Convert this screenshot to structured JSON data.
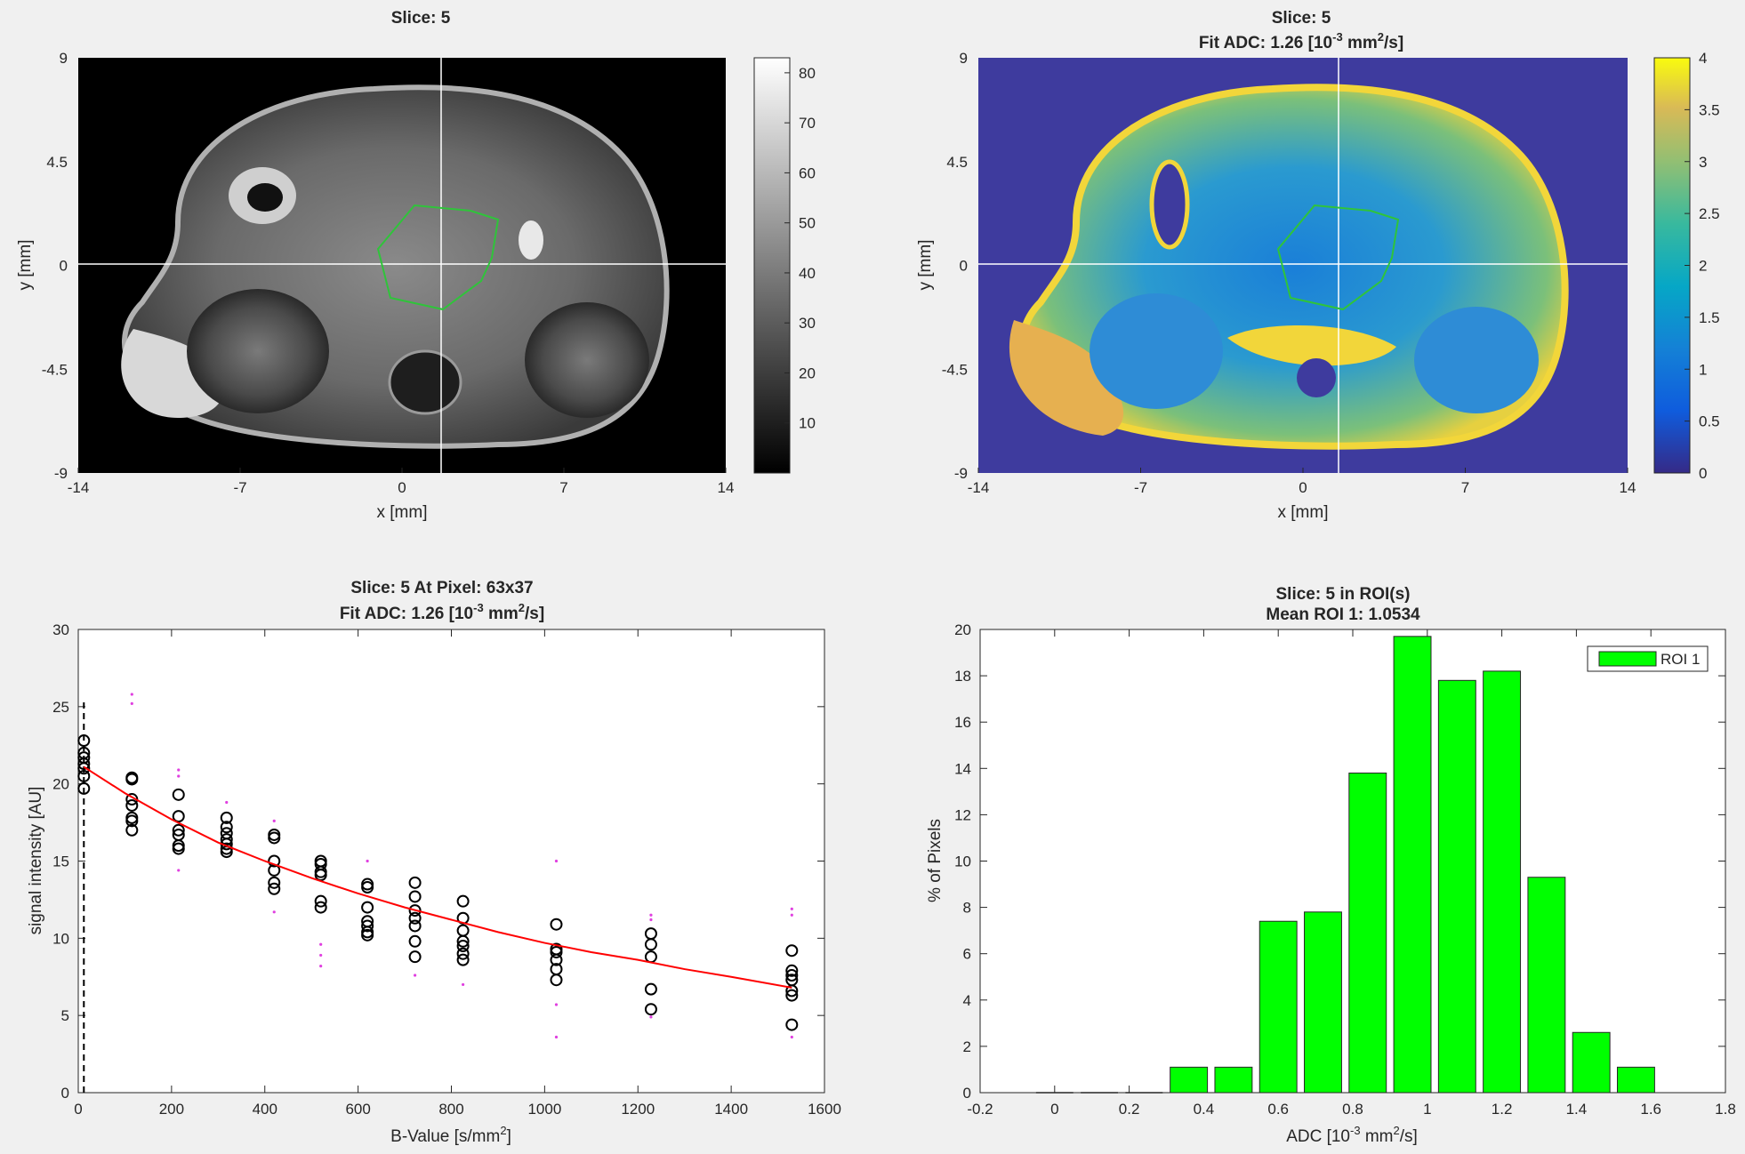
{
  "panels": {
    "mri": {
      "title": "Slice: 5",
      "xlabel": "x [mm]",
      "ylabel": "y [mm]",
      "xticks": [
        "-14",
        "-7",
        "0",
        "7",
        "14"
      ],
      "yticks": [
        "9",
        "4.5",
        "0",
        "-4.5",
        "-9"
      ],
      "colorbar_ticks": [
        "80",
        "70",
        "60",
        "50",
        "40",
        "30",
        "20",
        "10"
      ],
      "colormap": "gray",
      "roi_color": "#2fc43a",
      "crosshair_color": "#ffffff"
    },
    "adc_map": {
      "title_line1": "Slice: 5",
      "title_line2_prefix": "Fit ADC: 1.26 [10",
      "title_line2_sup": "-3",
      "title_line2_mid": " mm",
      "title_line2_sup2": "2",
      "title_line2_suffix": "/s]",
      "xlabel": "x [mm]",
      "ylabel": "y [mm]",
      "xticks": [
        "-14",
        "-7",
        "0",
        "7",
        "14"
      ],
      "yticks": [
        "9",
        "4.5",
        "0",
        "-4.5",
        "-9"
      ],
      "colorbar_ticks": [
        "4",
        "3.5",
        "3",
        "2.5",
        "2",
        "1.5",
        "1",
        "0.5",
        "0"
      ],
      "colormap": "parula",
      "background_color": "#3e3b9e"
    }
  },
  "chart_data": [
    {
      "type": "scatter",
      "title_line1": "Slice: 5   At Pixel: 63x37",
      "title_line2_prefix": "Fit ADC: 1.26 [10",
      "title_line2_sup": "-3",
      "title_line2_mid": " mm",
      "title_line2_sup2": "2",
      "title_line2_suffix": "/s]",
      "xlabel_prefix": "B-Value [s/mm",
      "xlabel_sup": "2",
      "xlabel_suffix": "]",
      "ylabel": "signal intensity [AU]",
      "xlim": [
        0,
        1600
      ],
      "ylim": [
        0,
        30
      ],
      "xticks": [
        0,
        200,
        400,
        600,
        800,
        1000,
        1200,
        1400,
        1600
      ],
      "yticks": [
        0,
        5,
        10,
        15,
        20,
        25,
        30
      ],
      "dashed_vline_x": 12,
      "series": [
        {
          "marker": "circle",
          "color": "#000000",
          "points": [
            [
              12,
              22.8
            ],
            [
              12,
              22.0
            ],
            [
              12,
              21.7
            ],
            [
              12,
              21.3
            ],
            [
              12,
              21.0
            ],
            [
              12,
              20.5
            ],
            [
              12,
              19.7
            ],
            [
              115,
              20.4
            ],
            [
              115,
              20.3
            ],
            [
              115,
              19.0
            ],
            [
              115,
              18.6
            ],
            [
              115,
              17.8
            ],
            [
              115,
              17.6
            ],
            [
              115,
              17.0
            ],
            [
              215,
              19.3
            ],
            [
              215,
              17.9
            ],
            [
              215,
              17.0
            ],
            [
              215,
              16.7
            ],
            [
              215,
              16.0
            ],
            [
              215,
              15.8
            ],
            [
              318,
              17.8
            ],
            [
              318,
              17.2
            ],
            [
              318,
              16.8
            ],
            [
              318,
              16.4
            ],
            [
              318,
              16.1
            ],
            [
              318,
              15.8
            ],
            [
              318,
              15.6
            ],
            [
              420,
              16.7
            ],
            [
              420,
              16.5
            ],
            [
              420,
              15.0
            ],
            [
              420,
              14.4
            ],
            [
              420,
              13.6
            ],
            [
              420,
              13.2
            ],
            [
              520,
              15.0
            ],
            [
              520,
              14.8
            ],
            [
              520,
              14.3
            ],
            [
              520,
              14.1
            ],
            [
              520,
              12.4
            ],
            [
              520,
              12.0
            ],
            [
              620,
              13.5
            ],
            [
              620,
              13.3
            ],
            [
              620,
              12.0
            ],
            [
              620,
              11.1
            ],
            [
              620,
              10.8
            ],
            [
              620,
              10.4
            ],
            [
              620,
              10.2
            ],
            [
              722,
              13.6
            ],
            [
              722,
              12.7
            ],
            [
              722,
              11.8
            ],
            [
              722,
              11.3
            ],
            [
              722,
              10.8
            ],
            [
              722,
              9.8
            ],
            [
              722,
              8.8
            ],
            [
              825,
              12.4
            ],
            [
              825,
              11.3
            ],
            [
              825,
              10.5
            ],
            [
              825,
              9.8
            ],
            [
              825,
              9.5
            ],
            [
              825,
              9.0
            ],
            [
              825,
              8.6
            ],
            [
              1025,
              10.9
            ],
            [
              1025,
              9.3
            ],
            [
              1025,
              9.1
            ],
            [
              1025,
              8.6
            ],
            [
              1025,
              8.0
            ],
            [
              1025,
              7.3
            ],
            [
              1228,
              10.3
            ],
            [
              1228,
              9.6
            ],
            [
              1228,
              8.8
            ],
            [
              1228,
              6.7
            ],
            [
              1228,
              5.4
            ],
            [
              1530,
              9.2
            ],
            [
              1530,
              7.9
            ],
            [
              1530,
              7.6
            ],
            [
              1530,
              7.3
            ],
            [
              1530,
              6.6
            ],
            [
              1530,
              6.3
            ],
            [
              1530,
              4.4
            ]
          ]
        },
        {
          "marker": "dot",
          "color": "#e040e0",
          "points": [
            [
              115,
              25.8
            ],
            [
              115,
              25.2
            ],
            [
              215,
              20.9
            ],
            [
              215,
              20.5
            ],
            [
              215,
              14.4
            ],
            [
              318,
              18.8
            ],
            [
              420,
              17.6
            ],
            [
              420,
              11.7
            ],
            [
              520,
              9.6
            ],
            [
              520,
              8.9
            ],
            [
              520,
              8.2
            ],
            [
              620,
              15.0
            ],
            [
              722,
              7.6
            ],
            [
              825,
              7.0
            ],
            [
              1025,
              15.0
            ],
            [
              1025,
              5.7
            ],
            [
              1025,
              3.6
            ],
            [
              1228,
              11.5
            ],
            [
              1228,
              11.2
            ],
            [
              1228,
              4.9
            ],
            [
              1530,
              11.9
            ],
            [
              1530,
              11.5
            ],
            [
              1530,
              3.6
            ]
          ]
        },
        {
          "marker": "line",
          "color": "#ff0000",
          "x": [
            12,
            100,
            200,
            300,
            400,
            500,
            600,
            700,
            800,
            900,
            1000,
            1100,
            1200,
            1300,
            1400,
            1530
          ],
          "y": [
            21.1,
            19.4,
            17.7,
            16.2,
            15.0,
            13.9,
            12.9,
            12.0,
            11.2,
            10.4,
            9.7,
            9.1,
            8.6,
            8.0,
            7.5,
            6.8
          ]
        }
      ]
    },
    {
      "type": "bar",
      "title_line1": "Slice: 5   in ROI(s)",
      "title_line2": "Mean ROI 1: 1.0534",
      "xlabel_prefix": "ADC [10",
      "xlabel_sup": "-3",
      "xlabel_mid": " mm",
      "xlabel_sup2": "2",
      "xlabel_suffix": "/s]",
      "ylabel": "% of Pixels",
      "xlim": [
        -0.2,
        1.8
      ],
      "ylim": [
        0,
        20
      ],
      "xticks": [
        "-0.2",
        "0",
        "0.2",
        "0.4",
        "0.6",
        "0.8",
        "1",
        "1.2",
        "1.4",
        "1.6",
        "1.8"
      ],
      "yticks": [
        "0",
        "2",
        "4",
        "6",
        "8",
        "10",
        "12",
        "14",
        "16",
        "18",
        "20"
      ],
      "bar_width": 0.1,
      "legend": {
        "label": "ROI 1",
        "position": "top-right"
      },
      "series": [
        {
          "name": "ROI 1",
          "color": "#00ff00",
          "x": [
            0,
            0.12,
            0.24,
            0.36,
            0.48,
            0.6,
            0.72,
            0.84,
            0.96,
            1.08,
            1.2,
            1.32,
            1.44,
            1.56
          ],
          "values": [
            0,
            0,
            0,
            1.1,
            1.1,
            7.4,
            7.8,
            13.8,
            19.7,
            17.8,
            18.2,
            9.3,
            2.6,
            1.1
          ]
        }
      ]
    }
  ]
}
